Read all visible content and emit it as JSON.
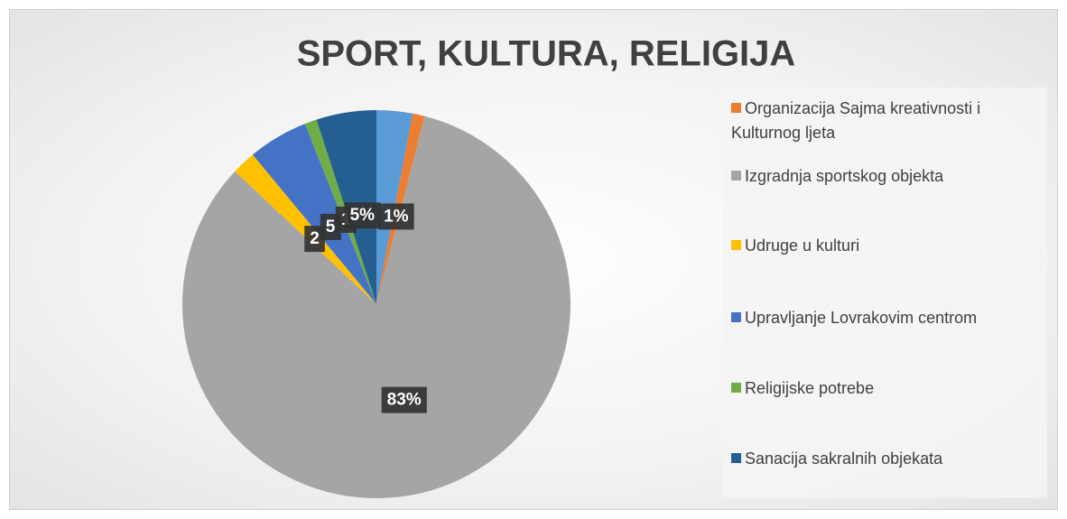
{
  "chart_data": {
    "type": "pie",
    "title": "SPORT, KULTURA, RELIGIJA",
    "categories": [
      null,
      "Organizacija Sajma kreativnosti i Kulturnog ljeta",
      "Izgradnja sportskog objekta",
      "Udruge u kulturi",
      "Upravljanje Lovrakovim centrom",
      "Religijske potrebe",
      "Sanacija sakralnih objekata"
    ],
    "values": [
      3,
      1,
      83,
      2,
      5,
      1,
      5
    ],
    "value_labels": [
      null,
      "1%",
      "83%",
      "2",
      "5",
      "1",
      "5%"
    ],
    "colors": [
      "#5b9bd5",
      "#ed7d31",
      "#a5a5a5",
      "#ffc000",
      "#4472c4",
      "#70ad47",
      "#255e91"
    ],
    "legend": "right"
  }
}
